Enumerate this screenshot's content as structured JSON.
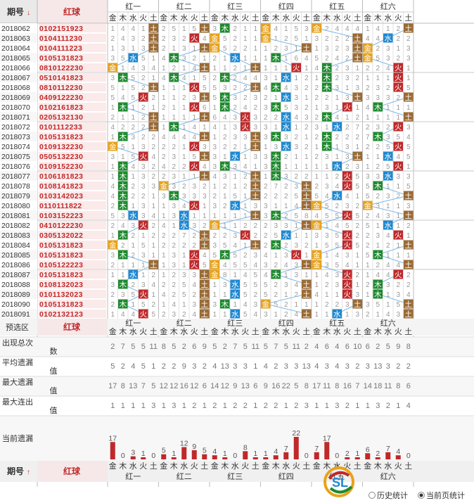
{
  "header": {
    "period_label": "期号",
    "period_sort_icon": "down-arrow-icon",
    "red_ball_label": "红球",
    "groups": [
      "红一",
      "红二",
      "红三",
      "红四",
      "红五",
      "红六"
    ],
    "elements": [
      "金",
      "木",
      "水",
      "火",
      "土"
    ]
  },
  "chart_data": {
    "type": "table",
    "element_colors": {
      "金": "#e8a21a",
      "木": "#1e8a2e",
      "水": "#1e88d0",
      "火": "#c0282a",
      "土": "#9a6a34"
    },
    "rows": [
      {
        "period": "2018062",
        "balls": "0102151923",
        "sel": [
          4,
          4,
          1,
          0,
          0,
          4
        ]
      },
      {
        "period": "2018063",
        "balls": "0104111230",
        "sel": [
          4,
          3,
          0,
          0,
          4,
          2
        ]
      },
      {
        "period": "2018064",
        "balls": "0104111223",
        "sel": [
          4,
          4,
          0,
          4,
          4,
          0
        ]
      },
      {
        "period": "2018065",
        "balls": "0105131823",
        "sel": [
          2,
          1,
          2,
          1,
          4,
          0
        ]
      },
      {
        "period": "2018066",
        "balls": "0810122230",
        "sel": [
          0,
          4,
          4,
          3,
          1,
          3
        ]
      },
      {
        "period": "2018067",
        "balls": "0510141823",
        "sel": [
          1,
          1,
          1,
          2,
          1,
          3
        ]
      },
      {
        "period": "2018068",
        "balls": "0810112230",
        "sel": [
          4,
          3,
          4,
          1,
          1,
          3
        ]
      },
      {
        "period": "2018069",
        "balls": "0409122230",
        "sel": [
          3,
          4,
          1,
          2,
          4,
          4
        ]
      },
      {
        "period": "2018070",
        "balls": "0102161823",
        "sel": [
          1,
          3,
          1,
          1,
          3,
          1
        ]
      },
      {
        "period": "2018071",
        "balls": "0205132130",
        "sel": [
          4,
          4,
          3,
          2,
          1,
          4
        ]
      },
      {
        "period": "2018072",
        "balls": "0101112233",
        "sel": [
          4,
          1,
          3,
          2,
          2,
          3
        ]
      },
      {
        "period": "2018073",
        "balls": "0105131823",
        "sel": [
          1,
          4,
          4,
          1,
          1,
          1
        ]
      },
      {
        "period": "2018074",
        "balls": "0109132230",
        "sel": [
          0,
          3,
          4,
          2,
          1,
          3
        ]
      },
      {
        "period": "2018075",
        "balls": "0505132230",
        "sel": [
          3,
          4,
          2,
          1,
          4,
          2
        ]
      },
      {
        "period": "2018076",
        "balls": "0109152230",
        "sel": [
          1,
          3,
          1,
          1,
          2,
          3
        ]
      },
      {
        "period": "2018077",
        "balls": "0106181823",
        "sel": [
          1,
          4,
          4,
          1,
          3,
          2
        ]
      },
      {
        "period": "2018078",
        "balls": "0108141823",
        "sel": [
          1,
          0,
          4,
          4,
          3,
          1
        ]
      },
      {
        "period": "2018079",
        "balls": "0103142023",
        "sel": [
          1,
          1,
          4,
          4,
          2,
          4
        ]
      },
      {
        "period": "2018080",
        "balls": "0110111822",
        "sel": [
          1,
          3,
          2,
          4,
          0,
          0
        ]
      },
      {
        "period": "2018081",
        "balls": "0103152223",
        "sel": [
          2,
          2,
          4,
          1,
          3,
          4
        ]
      },
      {
        "period": "2018082",
        "balls": "0410122230",
        "sel": [
          3,
          2,
          0,
          4,
          0,
          2
        ]
      },
      {
        "period": "2018083",
        "balls": "0305132022",
        "sel": [
          1,
          4,
          3,
          2,
          3,
          3
        ]
      },
      {
        "period": "2018084",
        "balls": "0105131823",
        "sel": [
          0,
          4,
          4,
          1,
          3,
          4
        ]
      },
      {
        "period": "2018085",
        "balls": "0105131823",
        "sel": [
          1,
          3,
          1,
          3,
          0,
          1
        ]
      },
      {
        "period": "2018086",
        "balls": "0105122223",
        "sel": [
          4,
          3,
          0,
          4,
          0,
          4
        ]
      },
      {
        "period": "2018087",
        "balls": "0105131823",
        "sel": [
          2,
          4,
          0,
          1,
          3,
          3
        ]
      },
      {
        "period": "2018088",
        "balls": "0108132023",
        "sel": [
          1,
          4,
          2,
          4,
          3,
          1
        ]
      },
      {
        "period": "2018089",
        "balls": "0101132023",
        "sel": [
          3,
          4,
          2,
          4,
          3,
          1
        ]
      },
      {
        "period": "2018090",
        "balls": "0105131823",
        "sel": [
          1,
          4,
          1,
          0,
          4,
          4
        ]
      },
      {
        "period": "2018091",
        "balls": "0102132123",
        "sel": [
          3,
          4,
          2,
          4,
          2,
          4
        ]
      }
    ],
    "miss_digits": [
      "1241115542112212432221121271224281345334",
      "1423135143112346211321131232152451353211",
      "2143234125422114413534321531321552415152",
      "3431223451211535432231341112353545351242",
      "1243211532425111242332312213214321422313",
      "3112534322121313443312332121132113151352",
      "1213512311112121212213343212114543251444"
    ],
    "predict_label": "预选区",
    "predict_group_labels": [
      "红一",
      "红二",
      "红三",
      "红四",
      "红五",
      "红六"
    ],
    "stats": [
      {
        "label": "出现总次数",
        "values": [
          2,
          7,
          5,
          5,
          11,
          8,
          5,
          2,
          6,
          9,
          5,
          2,
          7,
          5,
          11,
          5,
          7,
          5,
          11,
          2,
          4,
          6,
          4,
          6,
          10,
          6,
          2,
          5,
          9,
          8
        ]
      },
      {
        "label": "平均遗漏值",
        "values": [
          5,
          2,
          4,
          5,
          1,
          2,
          2,
          9,
          3,
          2,
          4,
          13,
          3,
          3,
          1,
          4,
          2,
          3,
          3,
          13,
          4,
          3,
          4,
          3,
          2,
          3,
          13,
          3,
          2,
          2
        ]
      },
      {
        "label": "最大遗漏值",
        "values": [
          17,
          8,
          13,
          7,
          5,
          12,
          12,
          16,
          12,
          6,
          14,
          12,
          9,
          13,
          6,
          9,
          16,
          22,
          5,
          8,
          17,
          11,
          8,
          16,
          7,
          14,
          18,
          11,
          8,
          6
        ]
      },
      {
        "label": "最大连出值",
        "values": [
          1,
          1,
          1,
          1,
          3,
          1,
          3,
          1,
          2,
          1,
          2,
          1,
          2,
          2,
          1,
          2,
          2,
          1,
          2,
          3,
          1,
          1,
          3,
          2,
          1,
          1,
          3,
          2,
          1,
          4
        ]
      },
      {
        "label": "当前遗漏",
        "values": [
          17,
          0,
          3,
          1,
          0,
          5,
          1,
          12,
          9,
          5,
          4,
          1,
          0,
          8,
          1,
          1,
          4,
          7,
          22,
          0,
          7,
          17,
          0,
          2,
          1,
          6,
          2,
          7,
          4,
          0
        ]
      }
    ],
    "footer": {
      "period_label": "期号",
      "red_ball_label": "红球",
      "options": [
        "历史统计",
        "当前页统计"
      ],
      "selected_option": "当前页统计"
    }
  }
}
